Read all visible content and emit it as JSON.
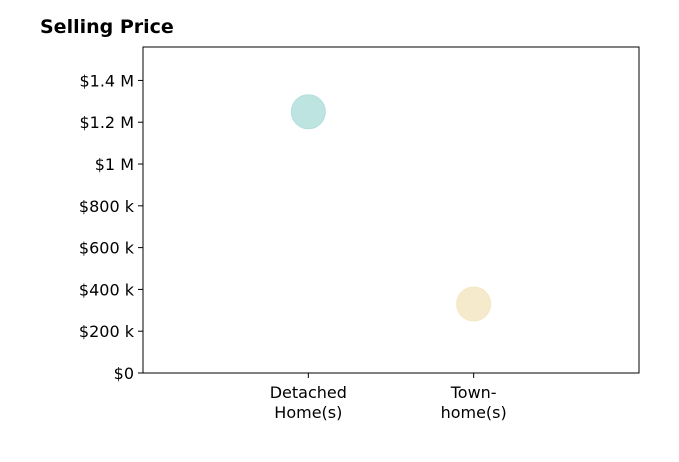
{
  "chart_data": {
    "type": "scatter",
    "title": "Selling Price",
    "xlabel": "",
    "ylabel": "",
    "categories": [
      [
        "Detached",
        "Home(s)"
      ],
      [
        "Town-",
        "home(s)"
      ]
    ],
    "x_range": [
      0,
      3
    ],
    "category_positions": [
      1,
      2
    ],
    "ylim": [
      0,
      1560000
    ],
    "yticks": [
      0,
      200000,
      400000,
      600000,
      800000,
      1000000,
      1200000,
      1400000
    ],
    "ytick_labels": [
      "$0",
      "$200 k",
      "$400 k",
      "$600 k",
      "$800 k",
      "$1 M",
      "$1.2 M",
      "$1.4 M"
    ],
    "points": [
      {
        "category": "Detached Home(s)",
        "value": 1250000,
        "color": "#b2dfdb"
      },
      {
        "category": "Townhome(s)",
        "value": 330000,
        "color": "#f5e6c4"
      }
    ],
    "grid": false,
    "legend": "none"
  }
}
